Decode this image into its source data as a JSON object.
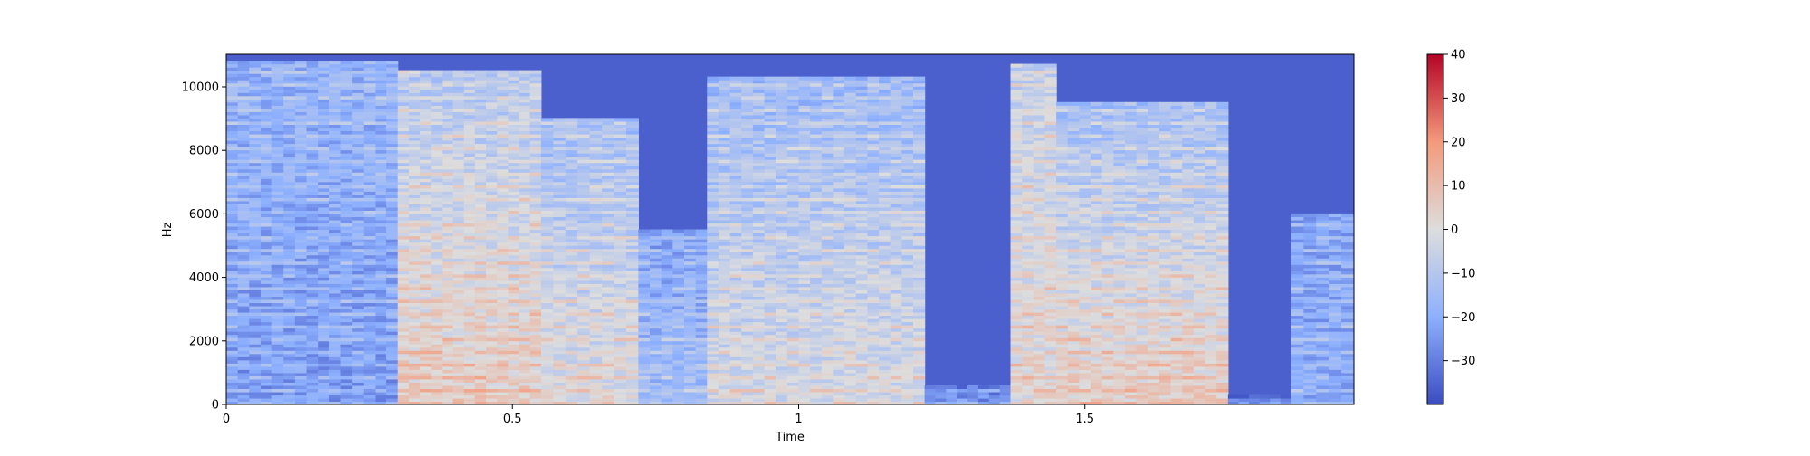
{
  "chart_data": {
    "type": "heatmap",
    "title": "",
    "xlabel": "Time",
    "ylabel": "Hz",
    "xlim": [
      0,
      1.97
    ],
    "ylim": [
      0,
      11025
    ],
    "xticks": [
      {
        "value": 0,
        "label": "0"
      },
      {
        "value": 0.5,
        "label": "0.5"
      },
      {
        "value": 1,
        "label": "1"
      },
      {
        "value": 1.5,
        "label": "1.5"
      }
    ],
    "yticks": [
      {
        "value": 0,
        "label": "0"
      },
      {
        "value": 2000,
        "label": "2000"
      },
      {
        "value": 4000,
        "label": "4000"
      },
      {
        "value": 6000,
        "label": "6000"
      },
      {
        "value": 8000,
        "label": "8000"
      },
      {
        "value": 10000,
        "label": "10000"
      }
    ],
    "colorbar": {
      "range": [
        -40,
        40
      ],
      "ticks": [
        {
          "value": 40,
          "label": "40"
        },
        {
          "value": 30,
          "label": "30"
        },
        {
          "value": 20,
          "label": "20"
        },
        {
          "value": 10,
          "label": "10"
        },
        {
          "value": 0,
          "label": "0"
        },
        {
          "value": -10,
          "label": "−10"
        },
        {
          "value": -20,
          "label": "−20"
        },
        {
          "value": -30,
          "label": "−30"
        }
      ],
      "colormap": "coolwarm"
    },
    "segments": [
      {
        "t0": 0.0,
        "t1": 0.3,
        "fmax": 10800,
        "level": -18,
        "low_level": -24
      },
      {
        "t0": 0.3,
        "t1": 0.55,
        "fmax": 10500,
        "level": -10,
        "low_level": 5
      },
      {
        "t0": 0.55,
        "t1": 0.72,
        "fmax": 9000,
        "level": -14,
        "low_level": 0
      },
      {
        "t0": 0.72,
        "t1": 0.84,
        "fmax": 5500,
        "level": -22,
        "low_level": -15
      },
      {
        "t0": 0.84,
        "t1": 1.22,
        "fmax": 10300,
        "level": -16,
        "low_level": -2
      },
      {
        "t0": 1.22,
        "t1": 1.37,
        "fmax": 600,
        "level": -30,
        "low_level": -25
      },
      {
        "t0": 1.37,
        "t1": 1.45,
        "fmax": 10700,
        "level": -6,
        "low_level": 2
      },
      {
        "t0": 1.45,
        "t1": 1.75,
        "fmax": 9500,
        "level": -14,
        "low_level": 5
      },
      {
        "t0": 1.75,
        "t1": 1.86,
        "fmax": 300,
        "level": -32,
        "low_level": -30
      },
      {
        "t0": 1.86,
        "t1": 1.97,
        "fmax": 6000,
        "level": -22,
        "low_level": -20
      }
    ],
    "background_level": -36
  },
  "colors": {
    "cold": "#3b4cc0",
    "neutral": "#dddddd",
    "hot": "#b40426"
  }
}
